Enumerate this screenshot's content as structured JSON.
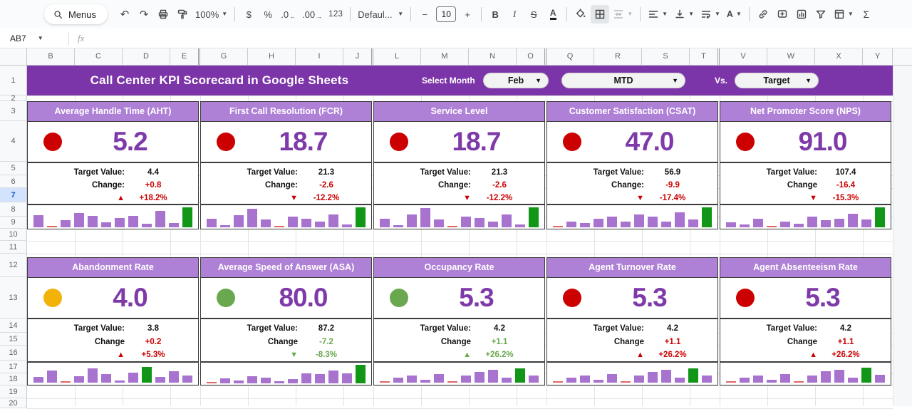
{
  "toolbar": {
    "menus": "Menus",
    "zoom": "100%",
    "currency": "$",
    "percent": "%",
    "decrease_decimal": ".0",
    "decrease_decimal_arrow": "←",
    "increase_decimal": ".00",
    "increase_decimal_arrow": "→",
    "more_formats": "123",
    "font_name": "Defaul...",
    "minus": "−",
    "font_size": "10",
    "plus": "+",
    "bold": "B",
    "italic": "I",
    "strikethrough": "S",
    "text_color": "A",
    "text_rotation": "A",
    "undo": "↶",
    "redo": "↷",
    "functions": "Σ"
  },
  "formula_bar": {
    "name_box": "AB7",
    "fx_label": "fx"
  },
  "grid": {
    "columns": [
      "B",
      "C",
      "D",
      "E",
      "G",
      "H",
      "I",
      "J",
      "L",
      "M",
      "N",
      "O",
      "Q",
      "R",
      "S",
      "T",
      "V",
      "W",
      "X",
      "Y"
    ],
    "rows": [
      "1",
      "2",
      "3",
      "4",
      "5",
      "6",
      "7",
      "8",
      "9",
      "10",
      "11",
      "12",
      "13",
      "14",
      "15",
      "16",
      "17",
      "18",
      "19",
      "20"
    ],
    "selected_row": "7"
  },
  "banner": {
    "title": "Call Center KPI Scorecard in Google Sheets",
    "select_month_label": "Select Month",
    "month_value": "Feb",
    "period_value": "MTD",
    "vs_label": "Vs.",
    "compare_value": "Target"
  },
  "colors": {
    "banner_purple": "#7c35a8",
    "card_header_purple": "#ae80d6",
    "value_purple": "#7e3aa8",
    "red": "#cc0000",
    "green": "#6aa84f",
    "yellow": "#f2b20a",
    "spark_purple": "#a872cf",
    "spark_green": "#119618",
    "spark_red": "#e06666"
  },
  "cards": [
    {
      "title": "Average Handle Time (AHT)",
      "value": "5.2",
      "status": "red",
      "target_label": "Target Value:",
      "target_value": "4.4",
      "change_label": "Change:",
      "change_value": "+0.8",
      "change_color": "red",
      "trend_arrow": "▲",
      "trend_pct": "+18.2%",
      "trend_color": "red",
      "spark": {
        "values": [
          0.6,
          0.04,
          0.35,
          0.72,
          0.58,
          0.25,
          0.45,
          0.58,
          0.17,
          0.82,
          0.22,
          1.0
        ],
        "green_index": 11,
        "red_indices": [
          1
        ]
      }
    },
    {
      "title": "First Call Resolution (FCR)",
      "value": "18.7",
      "status": "red",
      "target_label": "Target Value:",
      "target_value": "21.3",
      "change_label": "Change:",
      "change_value": "-2.6",
      "change_color": "red",
      "trend_arrow": "▼",
      "trend_pct": "-12.2%",
      "trend_color": "red",
      "spark": {
        "values": [
          0.42,
          0.12,
          0.62,
          0.92,
          0.38,
          0.04,
          0.55,
          0.42,
          0.28,
          0.65,
          0.15,
          1.0
        ],
        "green_index": 11,
        "red_indices": [
          5
        ]
      }
    },
    {
      "title": "Service Level",
      "value": "18.7",
      "status": "red",
      "target_label": "Target Value:",
      "target_value": "21.3",
      "change_label": "Change:",
      "change_value": "-2.6",
      "change_color": "red",
      "trend_arrow": "▼",
      "trend_pct": "-12.2%",
      "trend_color": "red",
      "spark": {
        "values": [
          0.42,
          0.12,
          0.65,
          0.95,
          0.38,
          0.04,
          0.55,
          0.45,
          0.28,
          0.65,
          0.15,
          1.0
        ],
        "green_index": 11,
        "red_indices": [
          5
        ]
      }
    },
    {
      "title": "Customer Satisfaction (CSAT)",
      "value": "47.0",
      "status": "red",
      "target_label": "Target Value:",
      "target_value": "56.9",
      "change_label": "Change:",
      "change_value": "-9.9",
      "change_color": "red",
      "trend_arrow": "▼",
      "trend_pct": "-17.4%",
      "trend_color": "red",
      "spark": {
        "values": [
          0.04,
          0.3,
          0.22,
          0.42,
          0.55,
          0.28,
          0.65,
          0.52,
          0.3,
          0.75,
          0.38,
          1.0
        ],
        "green_index": 11,
        "red_indices": [
          0
        ]
      }
    },
    {
      "title": "Net Promoter Score (NPS)",
      "value": "91.0",
      "status": "red",
      "target_label": "Target Value:",
      "target_value": "107.4",
      "change_label": "Change",
      "change_value": "-16.4",
      "change_color": "red",
      "trend_arrow": "▼",
      "trend_pct": "-15.3%",
      "trend_color": "red",
      "spark": {
        "values": [
          0.25,
          0.15,
          0.42,
          0.03,
          0.28,
          0.18,
          0.55,
          0.35,
          0.42,
          0.68,
          0.38,
          1.0
        ],
        "green_index": 11,
        "red_indices": [
          3
        ]
      }
    },
    {
      "title": "Abandonment Rate",
      "value": "4.0",
      "status": "yellow",
      "target_label": "Target Value:",
      "target_value": "3.8",
      "change_label": "Change",
      "change_value": "+0.2",
      "change_color": "red",
      "trend_arrow": "▲",
      "trend_pct": "+5.3%",
      "trend_color": "red",
      "spark": {
        "values": [
          0.3,
          0.65,
          0.03,
          0.35,
          0.75,
          0.48,
          0.12,
          0.55,
          0.85,
          0.3,
          0.6,
          0.4
        ],
        "green_index": 8,
        "red_indices": [
          2
        ]
      }
    },
    {
      "title": "Average Speed of Answer (ASA)",
      "value": "80.0",
      "status": "green",
      "target_label": "Target Value:",
      "target_value": "87.2",
      "change_label": "Change",
      "change_value": "-7.2",
      "change_color": "green",
      "trend_arrow": "▼",
      "trend_pct": "-8.3%",
      "trend_color": "green",
      "spark": {
        "values": [
          0.03,
          0.25,
          0.15,
          0.4,
          0.3,
          0.1,
          0.22,
          0.55,
          0.5,
          0.7,
          0.55,
          1.0
        ],
        "green_index": 11,
        "red_indices": [
          0
        ]
      }
    },
    {
      "title": "Occupancy Rate",
      "value": "5.3",
      "status": "green",
      "target_label": "Target Value:",
      "target_value": "4.2",
      "change_label": "Change",
      "change_value": "+1.1",
      "change_color": "green",
      "trend_arrow": "▲",
      "trend_pct": "+26.2%",
      "trend_color": "green",
      "spark": {
        "values": [
          0.03,
          0.28,
          0.38,
          0.15,
          0.45,
          0.03,
          0.38,
          0.58,
          0.68,
          0.28,
          0.78,
          0.38
        ],
        "green_index": 10,
        "red_indices": [
          0,
          5
        ]
      }
    },
    {
      "title": "Agent Turnover Rate",
      "value": "5.3",
      "status": "red",
      "target_label": "Target Value:",
      "target_value": "4.2",
      "change_label": "Change",
      "change_value": "+1.1",
      "change_color": "red",
      "trend_arrow": "▲",
      "trend_pct": "+26.2%",
      "trend_color": "red",
      "spark": {
        "values": [
          0.03,
          0.28,
          0.38,
          0.15,
          0.45,
          0.03,
          0.38,
          0.58,
          0.68,
          0.28,
          0.78,
          0.38
        ],
        "green_index": 10,
        "red_indices": [
          0,
          5
        ]
      }
    },
    {
      "title": "Agent Absenteeism Rate",
      "value": "5.3",
      "status": "red",
      "target_label": "Target Value:",
      "target_value": "4.2",
      "change_label": "Change",
      "change_value": "+1.1",
      "change_color": "red",
      "trend_arrow": "▲",
      "trend_pct": "+26.2%",
      "trend_color": "red",
      "spark": {
        "values": [
          0.03,
          0.28,
          0.38,
          0.15,
          0.48,
          0.03,
          0.38,
          0.6,
          0.7,
          0.28,
          0.82,
          0.42
        ],
        "green_index": 10,
        "red_indices": [
          0,
          5
        ]
      }
    }
  ]
}
